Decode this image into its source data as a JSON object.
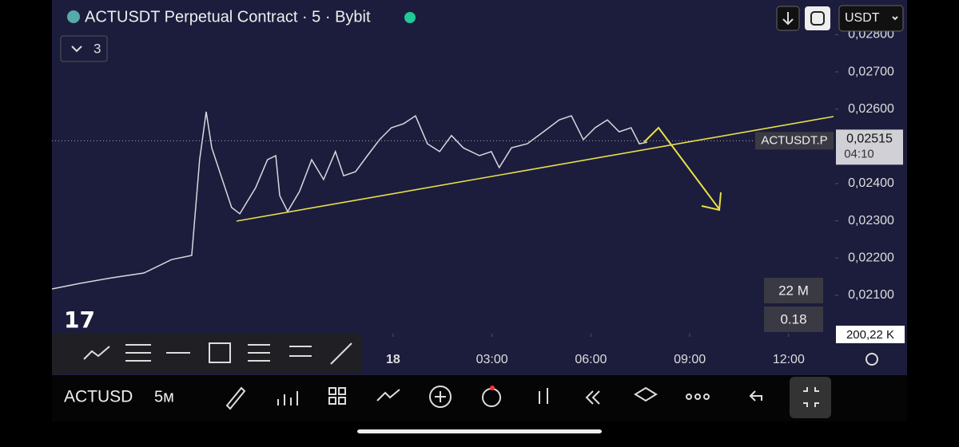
{
  "header": {
    "title": "ACTUSDT Perpetual Contract · 5 · Bybit",
    "indicators_count": "3",
    "currency": "USDT"
  },
  "chart_data": {
    "type": "line",
    "x": [
      -10.35,
      -9.5,
      -8.53,
      -7.56,
      -6.72,
      -6.11,
      -5.87,
      -5.67,
      -5.5,
      -5.26,
      -4.9,
      -4.65,
      -4.17,
      -3.81,
      -3.56,
      -3.44,
      -3.2,
      -2.84,
      -2.47,
      -2.11,
      -1.75,
      -1.5,
      -1.14,
      -0.78,
      -0.41,
      -0.05,
      0.32,
      0.68,
      1.04,
      1.41,
      1.77,
      2.13,
      2.62,
      2.98,
      3.22,
      3.59,
      4.07,
      4.56,
      5.04,
      5.41,
      5.77,
      6.13,
      6.5,
      6.86,
      7.22,
      7.47,
      7.71
    ],
    "series": [
      {
        "name": "ACTUSDT.P",
        "color": "#d8d8de",
        "values": [
          0.02117,
          0.02132,
          0.02147,
          0.0216,
          0.02196,
          0.02207,
          0.02464,
          0.02593,
          0.02496,
          0.02432,
          0.02336,
          0.02319,
          0.02389,
          0.02464,
          0.02475,
          0.02368,
          0.02325,
          0.02379,
          0.02464,
          0.02411,
          0.02486,
          0.02421,
          0.02432,
          0.02475,
          0.02518,
          0.0255,
          0.02561,
          0.02582,
          0.02507,
          0.02486,
          0.02529,
          0.02496,
          0.02475,
          0.02486,
          0.02443,
          0.02496,
          0.02507,
          0.02539,
          0.02571,
          0.02582,
          0.02518,
          0.0255,
          0.02571,
          0.02539,
          0.0255,
          0.02507,
          0.02511
        ]
      }
    ],
    "xlim": [
      -10.35,
      13.41
    ],
    "xticks": [
      {
        "value": 0,
        "label": "18"
      },
      {
        "value": 3,
        "label": "03:00"
      },
      {
        "value": 6,
        "label": "06:00"
      },
      {
        "value": 9,
        "label": "09:00"
      },
      {
        "value": 12,
        "label": "12:00"
      }
    ],
    "ylim": [
      0.01997,
      0.02893
    ],
    "yticks": [
      {
        "value": 0.021,
        "label": "0,02100"
      },
      {
        "value": 0.022,
        "label": "0,02200"
      },
      {
        "value": 0.023,
        "label": "0,02300"
      },
      {
        "value": 0.024,
        "label": "0,02400"
      },
      {
        "value": 0.026,
        "label": "0,02600"
      },
      {
        "value": 0.027,
        "label": "0,02700"
      },
      {
        "value": 0.028,
        "label": "0,02800"
      }
    ],
    "last_price": {
      "value": 0.02515,
      "label": "0,02515",
      "symbol": "ACTUSDT.P",
      "countdown": "04:10"
    },
    "volume_labels": [
      "22 M",
      "0.18",
      "200,22 K"
    ]
  },
  "bottom_bar": {
    "symbol": "ACTUSD",
    "interval": "5м"
  }
}
